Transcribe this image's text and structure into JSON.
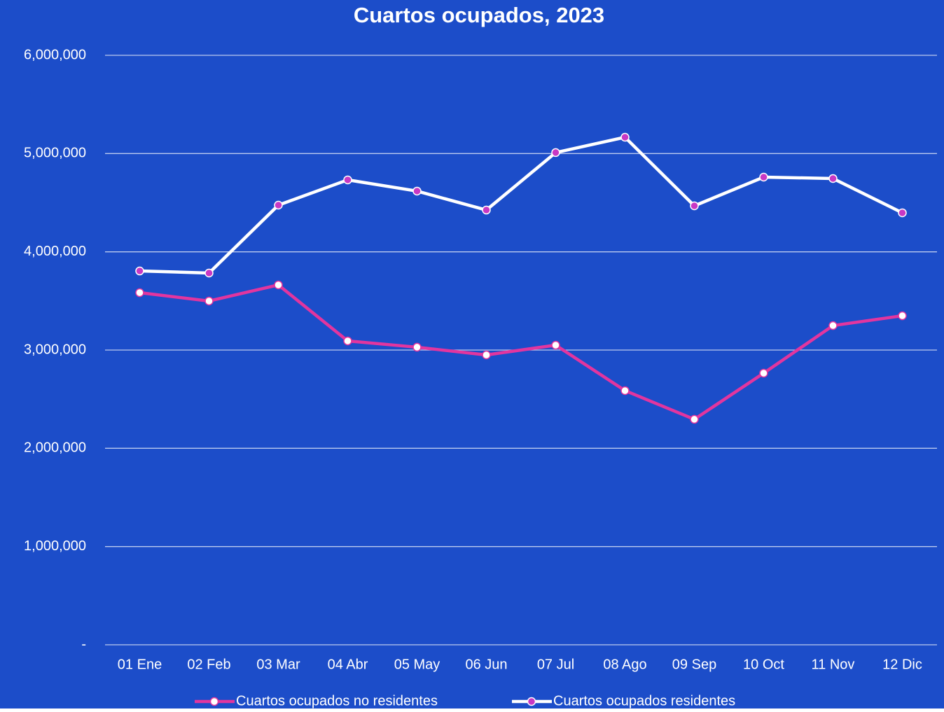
{
  "chart_data": {
    "type": "line",
    "title": "Cuartos ocupados, 2023",
    "categories": [
      "01 Ene",
      "02 Feb",
      "03 Mar",
      "04 Abr",
      "05 May",
      "06 Jun",
      "07 Jul",
      "08 Ago",
      "09 Sep",
      "10 Oct",
      "11 Nov",
      "12 Dic"
    ],
    "series": [
      {
        "name": "Cuartos ocupados no residentes",
        "color": "#e2359f",
        "marker_color": "#ffffff",
        "values": [
          3584000,
          3499000,
          3663000,
          3093000,
          3029000,
          2950000,
          3050000,
          2587000,
          2295000,
          2765000,
          3249000,
          3349000
        ]
      },
      {
        "name": "Cuartos ocupados residentes",
        "color": "#ffffff",
        "marker_color": "#c838c4",
        "values": [
          3805000,
          3784000,
          4475000,
          4732000,
          4618000,
          4425000,
          5010000,
          5166000,
          4468000,
          4760000,
          4746000,
          4397000
        ]
      }
    ],
    "ylim": [
      0,
      6000000
    ],
    "yticks": [
      {
        "value": 0,
        "label": "-"
      },
      {
        "value": 1000000,
        "label": "1,000,000"
      },
      {
        "value": 2000000,
        "label": "2,000,000"
      },
      {
        "value": 3000000,
        "label": "3,000,000"
      },
      {
        "value": 4000000,
        "label": "4,000,000"
      },
      {
        "value": 5000000,
        "label": "5,000,000"
      },
      {
        "value": 6000000,
        "label": "6,000,000"
      }
    ],
    "grid": true,
    "legend": "bottom",
    "background": "#1c4dc9"
  }
}
